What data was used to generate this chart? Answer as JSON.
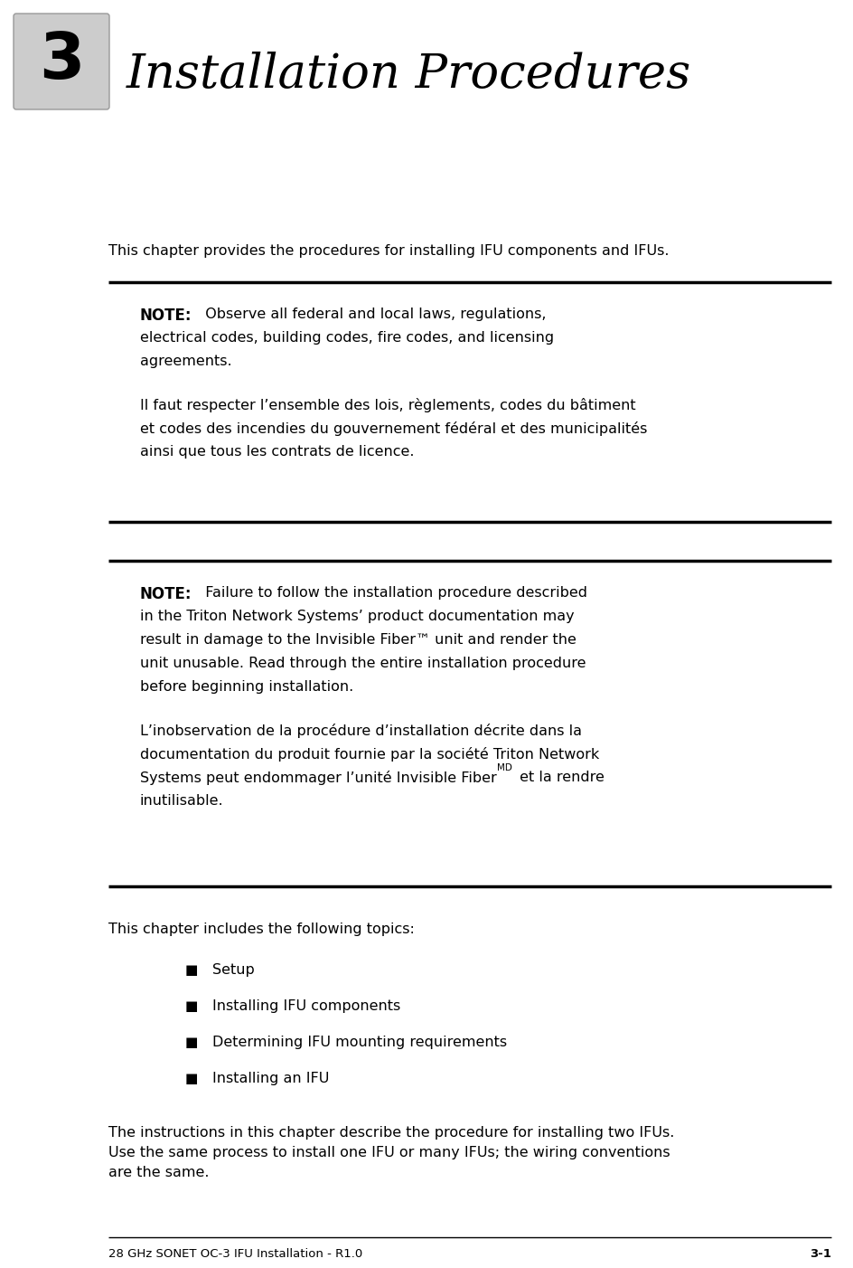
{
  "bg_color": "#ffffff",
  "title_text": "Installation Procedures",
  "title_fontsize": 38,
  "title_style": "italic",
  "title_font": "DejaVu Serif",
  "chapter_num": "3",
  "footer_left": "28 GHz SONET OC-3 IFU Installation - R1.0",
  "footer_right": "3-1",
  "intro_text": "This chapter provides the procedures for installing IFU components and IFUs.",
  "note1_label": "NOTE:",
  "note1_body_line1": "  Observe all federal and local laws, regulations,",
  "note1_body_line2": "electrical codes, building codes, fire codes, and licensing",
  "note1_body_line3": "agreements.",
  "note1_french_line1": "Il faut respecter l’ensemble des lois, règlements, codes du bâtiment",
  "note1_french_line2": "et codes des incendies du gouvernement fédéral et des municipalités",
  "note1_french_line3": "ainsi que tous les contrats de licence.",
  "note2_label": "NOTE:",
  "note2_body_line1": "  Failure to follow the installation procedure described",
  "note2_body_line2": "in the Triton Network Systems’ product documentation may",
  "note2_body_line3": "result in damage to the Invisible Fiber™ unit and render the",
  "note2_body_line4": "unit unusable. Read through the entire installation procedure",
  "note2_body_line5": "before beginning installation.",
  "note2_french_line1": "L’inobservation de la procédure d’installation décrite dans la",
  "note2_french_line2": "documentation du produit fournie par la société Triton Network",
  "note2_french_line3a": "Systems peut endommager l’unité Invisible Fiber",
  "note2_french_line3b": "MD",
  "note2_french_line3c": " et la rendre",
  "note2_french_line4": "inutilisable.",
  "topics_intro": "This chapter includes the following topics:",
  "bullet_items": [
    "Setup",
    "Installing IFU components",
    "Determining IFU mounting requirements",
    "Installing an IFU"
  ],
  "closing_line1": "The instructions in this chapter describe the procedure for installing two IFUs.",
  "closing_line2": "Use the same process to install one IFU or many IFUs; the wiring conventions",
  "closing_line3": "are the same.",
  "body_fontsize": 11.5,
  "note_fontsize": 11.5,
  "footer_fontsize": 9.5,
  "text_color": "#000000",
  "note_label_fontsize": 12
}
